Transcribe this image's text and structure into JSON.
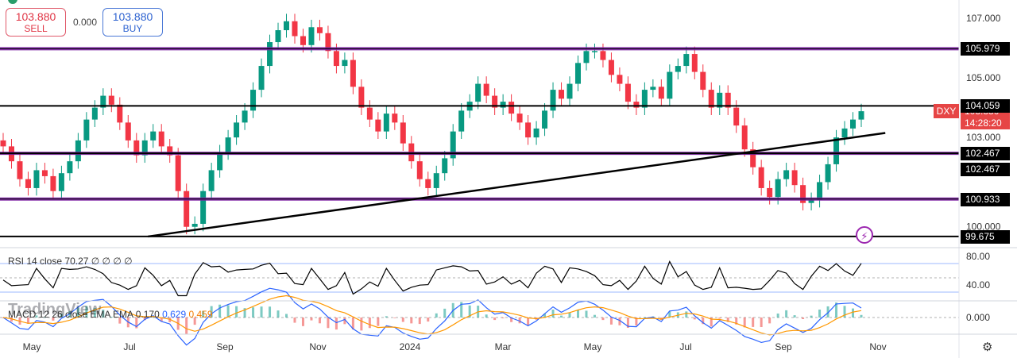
{
  "quote": {
    "sell_price": "103.880",
    "sell_label": "SELL",
    "spread": "0.000",
    "buy_price": "103.880",
    "buy_label": "BUY"
  },
  "symbol": "DXY",
  "countdown": "14:28:20",
  "watermark": "TradingView",
  "colors": {
    "up": "#089981",
    "down": "#f23645",
    "level_line": "#7b1fa2",
    "rsi_band": "#2962ff",
    "macd": "#2962ff",
    "signal": "#ff9800",
    "price_tag": "#e64545"
  },
  "rsi_legend": {
    "label": "RSI 14 close",
    "value": "70.27",
    "extra": "∅ ∅ ∅ ∅"
  },
  "macd_legend": {
    "label": "MACD 12 26 close EMA EMA",
    "hist": "0.170",
    "macd": "0.629",
    "signal": "0.459"
  },
  "chart_data": {
    "type": "candlestick",
    "price_axis": {
      "ticks": [
        {
          "v": 107.0,
          "t": "107.000"
        },
        {
          "v": 105.0,
          "t": "105.000"
        },
        {
          "v": 103.0,
          "t": "103.000"
        },
        {
          "v": 100.0,
          "t": "100.000"
        }
      ],
      "ylim": [
        99.3,
        107.4
      ]
    },
    "time_axis": {
      "labels": [
        "May",
        "Jul",
        "Sep",
        "Nov",
        "2024",
        "Mar",
        "May",
        "Jul",
        "Sep",
        "Nov"
      ]
    },
    "levels": [
      {
        "price": 105.979,
        "label": "105.979",
        "style": "purple"
      },
      {
        "price": 104.059,
        "label": "104.059",
        "style": "black"
      },
      {
        "price": 102.467,
        "label": "102.467",
        "style": "purple"
      },
      {
        "price": 102.467,
        "label": "102.467",
        "style": "black"
      },
      {
        "price": 100.933,
        "label": "100.933",
        "style": "purple"
      },
      {
        "price": 99.675,
        "label": "99.675",
        "style": "black"
      }
    ],
    "trendline": {
      "from": [
        0.1455,
        99.675
      ],
      "to": [
        0.8705,
        103.15
      ]
    },
    "last_price": 103.88,
    "closes": [
      102.7,
      102.2,
      101.6,
      101.3,
      101.9,
      101.7,
      101.2,
      101.8,
      102.2,
      102.9,
      103.6,
      104.0,
      104.4,
      104.1,
      103.5,
      102.9,
      102.4,
      102.9,
      103.2,
      102.7,
      102.4,
      101.2,
      100.0,
      100.1,
      101.2,
      101.9,
      102.5,
      103.0,
      103.5,
      103.9,
      104.6,
      105.4,
      106.2,
      106.6,
      106.9,
      106.4,
      106.1,
      106.7,
      106.5,
      105.9,
      105.4,
      105.6,
      104.7,
      104.0,
      103.6,
      103.2,
      103.8,
      103.5,
      102.8,
      102.2,
      101.6,
      101.3,
      101.8,
      102.3,
      103.2,
      103.9,
      104.2,
      104.8,
      104.4,
      104.0,
      104.2,
      103.8,
      103.5,
      103.0,
      103.3,
      103.9,
      104.6,
      104.3,
      104.8,
      105.5,
      105.9,
      105.9,
      105.6,
      105.1,
      104.8,
      104.2,
      104.0,
      104.6,
      104.7,
      104.3,
      105.2,
      105.4,
      105.8,
      105.2,
      104.6,
      104.0,
      104.5,
      104.0,
      103.4,
      102.6,
      102.0,
      101.3,
      101.0,
      101.6,
      101.9,
      101.4,
      100.8,
      100.9,
      101.5,
      102.1,
      103.0,
      103.3,
      103.6,
      103.88
    ],
    "rsi": {
      "ylim": [
        20,
        90
      ],
      "ticks": [
        {
          "v": 80,
          "t": "80.00"
        },
        {
          "v": 40,
          "t": "40.00"
        }
      ],
      "bands": [
        70,
        30
      ],
      "last": 70.27
    },
    "macd": {
      "ylim": [
        -1.0,
        1.0
      ],
      "ticks": [
        {
          "v": 0,
          "t": "0.000"
        }
      ],
      "macd_last": 0.629,
      "signal_last": 0.459,
      "hist_last": 0.17
    }
  }
}
